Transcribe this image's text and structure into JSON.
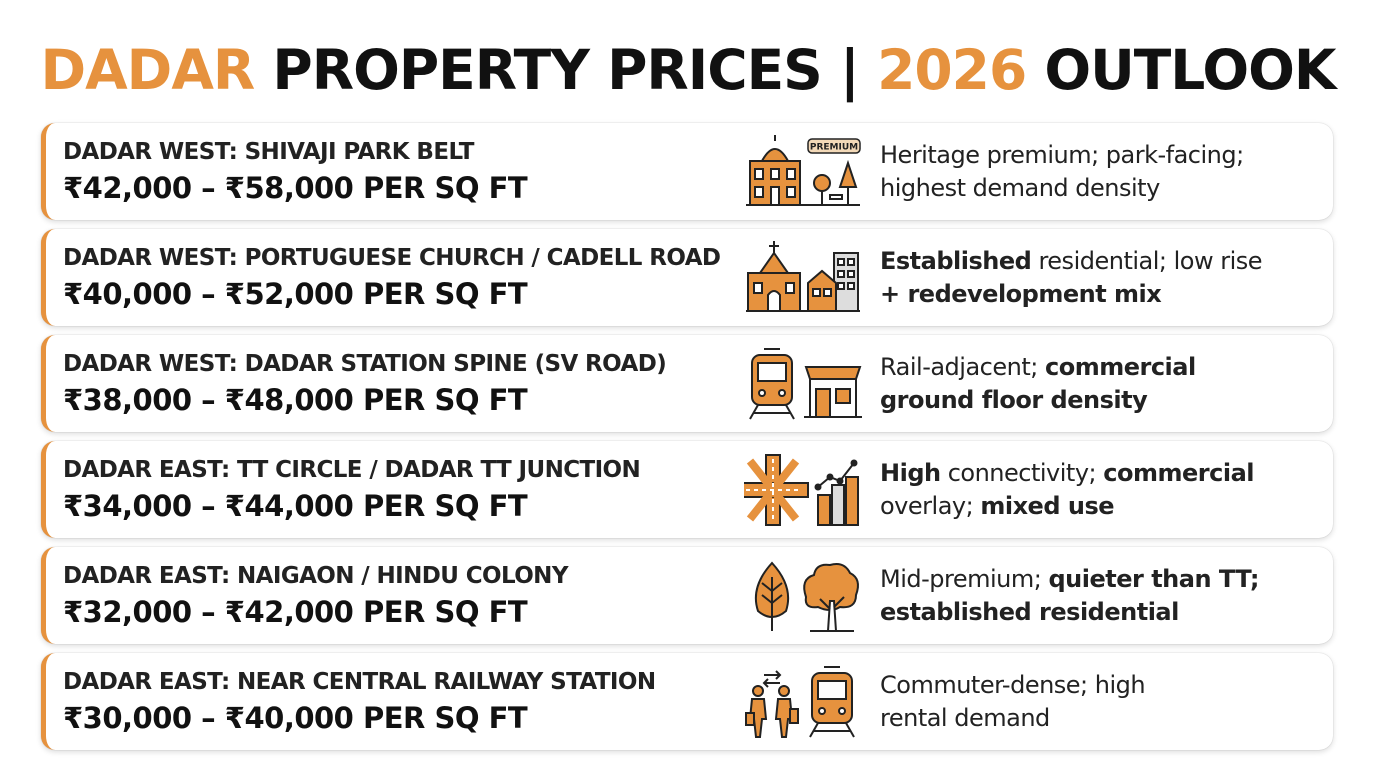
{
  "title": {
    "part1": "DADAR",
    "part2": "PROPERTY PRICES |",
    "part3": "2026",
    "part4": "OUTLOOK"
  },
  "colors": {
    "accent": "#e6923e",
    "text": "#111111"
  },
  "rows": [
    {
      "area": "DADAR WEST: SHIVAJI PARK BELT",
      "price": "₹42,000 – ₹58,000 PER SQ FT",
      "icons": [
        "heritage-building-icon",
        "park-trees-icon"
      ],
      "badge": "PREMIUM",
      "desc_line1": "Heritage premium; park-facing;",
      "desc_line2": "highest demand density"
    },
    {
      "area": "DADAR WEST: PORTUGUESE CHURCH / CADELL ROAD",
      "price": "₹40,000 – ₹52,000 PER SQ FT",
      "icons": [
        "church-icon",
        "apartment-building-icon"
      ],
      "desc_line1_bold": "Established",
      "desc_line1_rest": "residential; low rise",
      "desc_line2": "+ redevelopment mix"
    },
    {
      "area": "DADAR WEST: DADAR STATION SPINE (SV ROAD)",
      "price": "₹38,000 – ₹48,000 PER SQ FT",
      "icons": [
        "train-icon",
        "shop-front-icon"
      ],
      "desc_line1_rest": "Rail-adjacent;",
      "desc_line1_bold": "commercial",
      "desc_line2": "ground floor density"
    },
    {
      "area": "DADAR EAST: TT CIRCLE / DADAR TT JUNCTION",
      "price": "₹34,000 – ₹44,000 PER SQ FT",
      "icons": [
        "road-junction-icon",
        "growth-buildings-icon"
      ],
      "desc_line1_bold": "High",
      "desc_line1_rest": "connectivity;",
      "desc_line1_bold2": "commercial",
      "desc_line2_rest": "overlay;",
      "desc_line2_bold": "mixed use"
    },
    {
      "area": "DADAR EAST: NAIGAON / HINDU COLONY",
      "price": "₹32,000 – ₹42,000 PER SQ FT",
      "icons": [
        "leaf-icon",
        "tree-icon"
      ],
      "desc_line1_rest": "Mid-premium;",
      "desc_line1_bold": "quieter than TT;",
      "desc_line2": "established residential"
    },
    {
      "area": "DADAR EAST: NEAR CENTRAL RAILWAY STATION",
      "price": "₹30,000 – ₹40,000 PER SQ FT",
      "icons": [
        "commuters-icon",
        "train-icon"
      ],
      "desc_line1": "Commuter-dense; high",
      "desc_line2": "rental demand"
    }
  ]
}
